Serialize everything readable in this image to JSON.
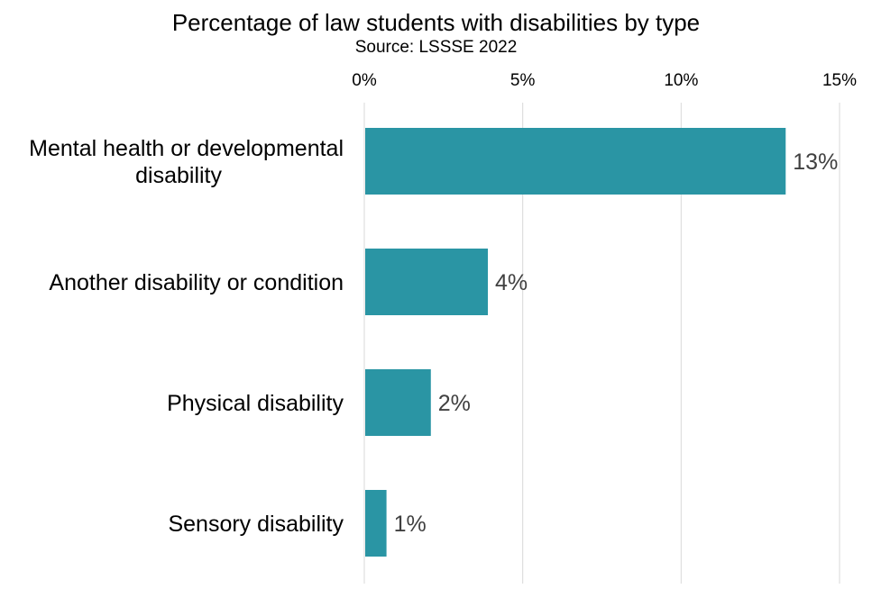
{
  "chart_data": {
    "type": "bar",
    "orientation": "horizontal",
    "title": "Percentage of law students with disabilities by type",
    "subtitle": "Source: LSSSE 2022",
    "categories": [
      [
        "Mental health or developmental",
        "disability"
      ],
      [
        "Another disability or condition"
      ],
      [
        "Physical disability"
      ],
      [
        "Sensory disability"
      ]
    ],
    "values": [
      13.3,
      3.9,
      2.1,
      0.7
    ],
    "data_labels": [
      "13%",
      "4%",
      "2%",
      "1%"
    ],
    "xlim": [
      0,
      15
    ],
    "x_ticks": [
      0,
      5,
      10,
      15
    ],
    "x_tick_labels": [
      "0%",
      "5%",
      "10%",
      "15%"
    ],
    "x_axis_position": "top",
    "grid": true,
    "legend": "none",
    "bar_color": "#2a95a4",
    "gridline_color": "#d9d9d9"
  }
}
